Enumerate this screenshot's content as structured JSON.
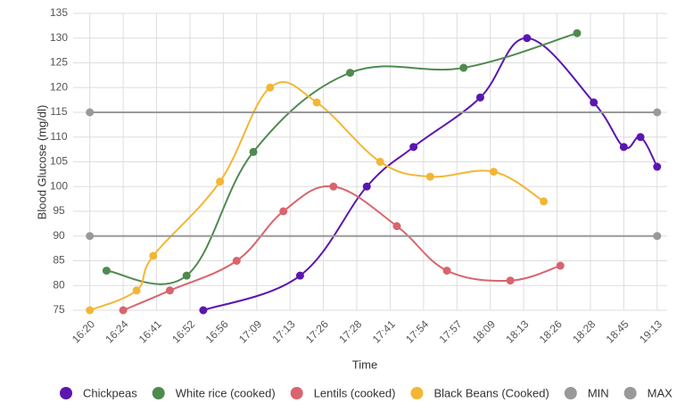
{
  "chart_data": {
    "type": "line",
    "x_label": "Time",
    "y_label": "Blood Glucose (mg/dl)",
    "xlim": [
      -0.5,
      17.3
    ],
    "xticks": [
      {
        "value": 0,
        "label": "16:20"
      },
      {
        "value": 1,
        "label": "16:24"
      },
      {
        "value": 2,
        "label": "16:41"
      },
      {
        "value": 3,
        "label": "16:52"
      },
      {
        "value": 4,
        "label": "16:56"
      },
      {
        "value": 5,
        "label": "17:09"
      },
      {
        "value": 6,
        "label": "17:13"
      },
      {
        "value": 7,
        "label": "17:26"
      },
      {
        "value": 8,
        "label": "17:28"
      },
      {
        "value": 9,
        "label": "17:41"
      },
      {
        "value": 10,
        "label": "17:54"
      },
      {
        "value": 11,
        "label": "17:57"
      },
      {
        "value": 12,
        "label": "18:09"
      },
      {
        "value": 13,
        "label": "18:13"
      },
      {
        "value": 14,
        "label": "18:26"
      },
      {
        "value": 15,
        "label": "18:28"
      },
      {
        "value": 16,
        "label": "18:45"
      },
      {
        "value": 17,
        "label": "19:13"
      }
    ],
    "ylim": [
      75,
      135
    ],
    "yticks": [
      75,
      80,
      85,
      90,
      95,
      100,
      105,
      110,
      115,
      120,
      125,
      130,
      135
    ],
    "grid": true,
    "series": [
      {
        "name": "Chickpeas",
        "color": "#5b16b0",
        "x": [
          3.4,
          6.3,
          8.3,
          9.7,
          11.7,
          13.1,
          15.1,
          16,
          16.5,
          17
        ],
        "values": [
          75,
          82,
          100,
          108,
          118,
          130,
          117,
          108,
          110,
          104
        ]
      },
      {
        "name": "White rice (cooked)",
        "color": "#4f8a4f",
        "x": [
          0.5,
          2.9,
          4.9,
          7.8,
          11.2,
          14.6
        ],
        "values": [
          83,
          82,
          107,
          123,
          124,
          131
        ]
      },
      {
        "name": "Lentils (cooked)",
        "color": "#d9646d",
        "x": [
          1,
          2.4,
          4.4,
          5.8,
          7.3,
          9.2,
          10.7,
          12.6,
          14.1
        ],
        "values": [
          75,
          79,
          85,
          95,
          100,
          92,
          83,
          81,
          84
        ]
      },
      {
        "name": "Black Beans (Cooked)",
        "color": "#f3b634",
        "x": [
          0,
          1.4,
          1.9,
          3.9,
          5.4,
          6.8,
          8.7,
          10.2,
          12.1,
          13.6
        ],
        "values": [
          75,
          79,
          86,
          101,
          120,
          117,
          105,
          102,
          103,
          97
        ]
      },
      {
        "name": "MIN",
        "color": "#999999",
        "x": [
          0,
          17
        ],
        "values": [
          90,
          90
        ]
      },
      {
        "name": "MAX",
        "color": "#999999",
        "x": [
          0,
          17
        ],
        "values": [
          115,
          115
        ]
      }
    ]
  }
}
